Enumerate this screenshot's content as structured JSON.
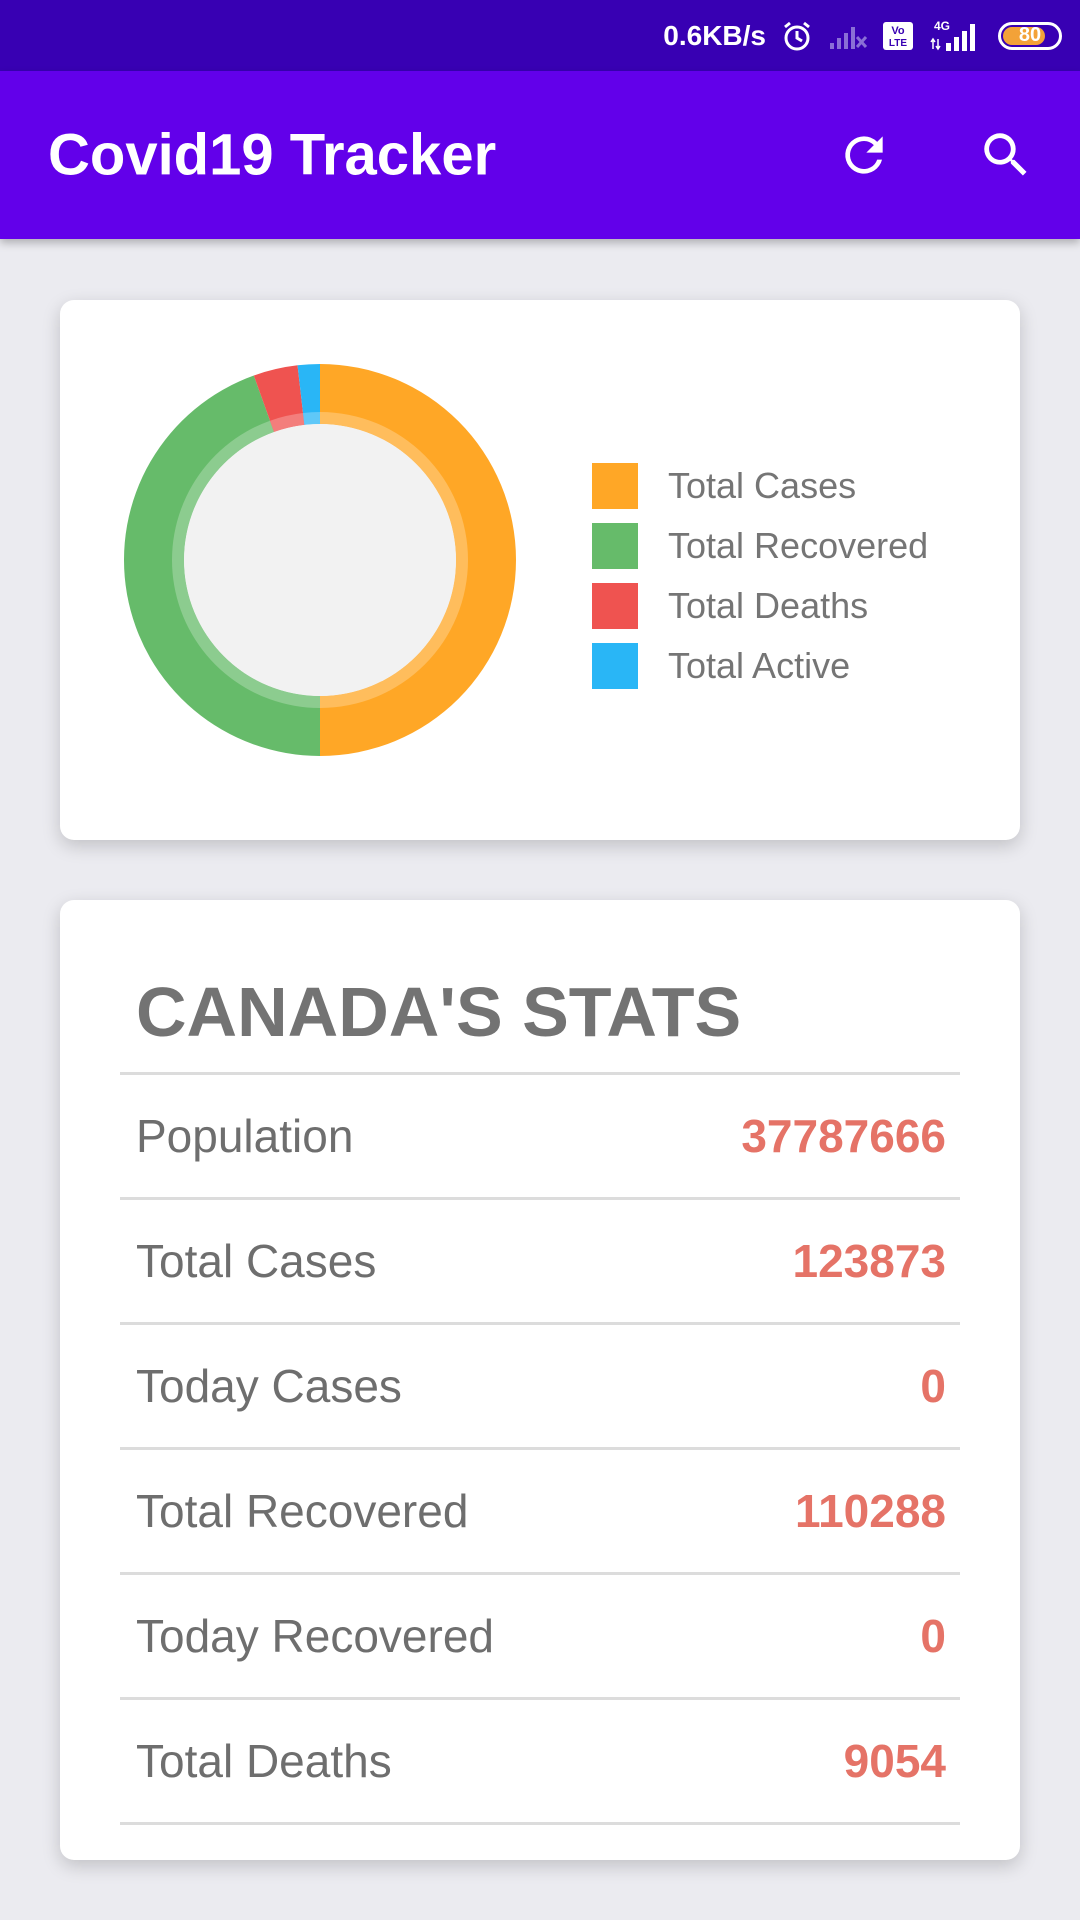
{
  "status_bar": {
    "speed": "0.6KB/s",
    "volte": "Vo LTE",
    "network": "4G",
    "battery_level": "80",
    "battery_fraction": 0.8
  },
  "app_bar": {
    "title": "Covid19 Tracker",
    "refresh_icon": "refresh-icon",
    "search_icon": "search-icon"
  },
  "chart_data": {
    "type": "pie",
    "categories": [
      "Total Cases",
      "Total Recovered",
      "Total Deaths",
      "Total Active"
    ],
    "values": [
      123873,
      110288,
      9054,
      4531
    ],
    "colors": [
      "#ffa726",
      "#66bb6a",
      "#ef5350",
      "#29b6f6"
    ],
    "legend_position": "right"
  },
  "stats": {
    "title": "CANADA'S STATS",
    "rows": [
      {
        "label": "Population",
        "value": "37787666"
      },
      {
        "label": "Total Cases",
        "value": "123873"
      },
      {
        "label": "Today Cases",
        "value": "0"
      },
      {
        "label": "Total Recovered",
        "value": "110288"
      },
      {
        "label": "Today Recovered",
        "value": "0"
      },
      {
        "label": "Total Deaths",
        "value": "9054"
      }
    ]
  },
  "colors": {
    "status_bar": "#3800b3",
    "app_bar": "#6200ea",
    "value_text": "#e57367"
  }
}
